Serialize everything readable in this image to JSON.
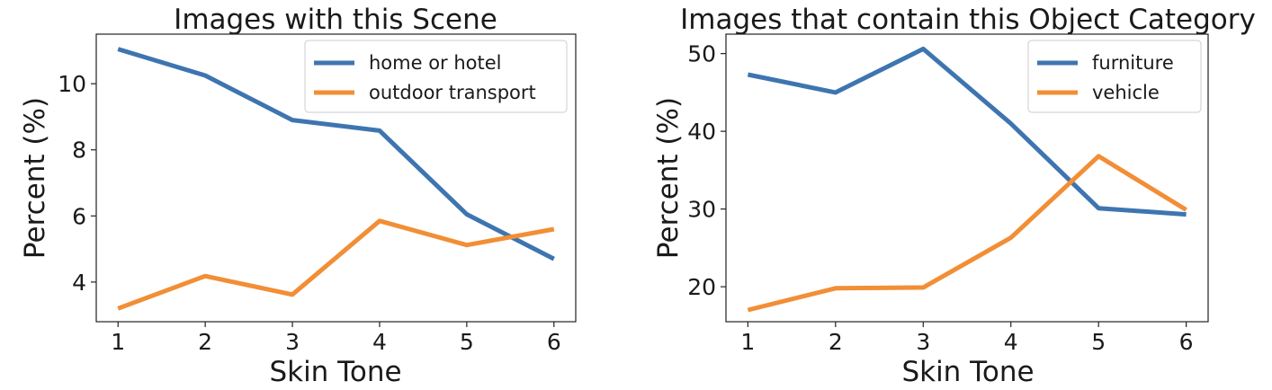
{
  "chart_data": [
    {
      "type": "line",
      "title": "Images with this Scene",
      "xlabel": "Skin Tone",
      "ylabel": "Percent (%)",
      "x": [
        1,
        2,
        3,
        4,
        5,
        6
      ],
      "xticks": [
        "1",
        "2",
        "3",
        "4",
        "5",
        "6"
      ],
      "yticks": [
        "4",
        "6",
        "8",
        "10"
      ],
      "ylim": [
        2.8,
        11.5
      ],
      "grid": false,
      "legend_position": "upper right",
      "series": [
        {
          "name": "home or hotel",
          "color": "#3e75b0",
          "values": [
            11.05,
            10.25,
            8.9,
            8.58,
            6.05,
            4.7
          ]
        },
        {
          "name": "outdoor transport",
          "color": "#f28e35",
          "values": [
            3.2,
            4.18,
            3.62,
            5.85,
            5.12,
            5.6
          ]
        }
      ]
    },
    {
      "type": "line",
      "title": "Images that contain this Object Category",
      "xlabel": "Skin Tone",
      "ylabel": "Percent (%)",
      "x": [
        1,
        2,
        3,
        4,
        5,
        6
      ],
      "xticks": [
        "1",
        "2",
        "3",
        "4",
        "5",
        "6"
      ],
      "yticks": [
        "20",
        "30",
        "40",
        "50"
      ],
      "ylim": [
        15.5,
        52.5
      ],
      "grid": false,
      "legend_position": "upper right",
      "series": [
        {
          "name": "furniture",
          "color": "#3e75b0",
          "values": [
            47.3,
            45.0,
            50.6,
            41.0,
            30.1,
            29.3
          ]
        },
        {
          "name": "vehicle",
          "color": "#f28e35",
          "values": [
            17.0,
            19.8,
            19.9,
            26.3,
            36.8,
            29.9
          ]
        }
      ]
    }
  ]
}
